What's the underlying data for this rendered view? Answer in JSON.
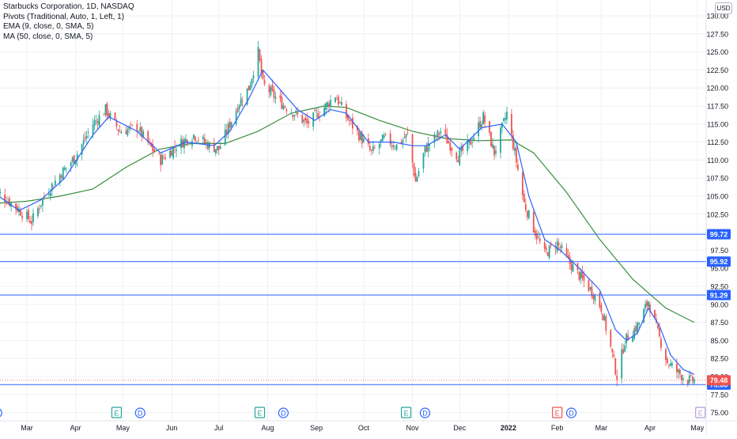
{
  "legend": {
    "title": "Starbucks Corporation, 1D, NASDAQ",
    "pivots": "Pivots (Traditional, Auto, 1, Left, 1)",
    "ema": "EMA (9, close, 0, SMA, 5)",
    "ma": "MA (50, close, 0, SMA, 5)"
  },
  "currency_badge": "USD",
  "colors": {
    "up": "#26a69a",
    "down": "#ef5350",
    "ema": "#2962ff",
    "ma": "#388e3c",
    "pivot_line": "#2962ff",
    "axis_text": "#131722",
    "last_price_bg": "#ef5350",
    "pivot_label_bg": "#2962ff",
    "gridline": "#eef0f3"
  },
  "events": [
    {
      "label": "D",
      "type": "dividend",
      "date": "2021-02-10",
      "color": "#2962ff"
    },
    {
      "label": "E",
      "type": "earnings",
      "date": "2021-04-27",
      "color": "#26a69a"
    },
    {
      "label": "D",
      "type": "dividend",
      "date": "2021-05-12",
      "color": "#2962ff"
    },
    {
      "label": "E",
      "type": "earnings",
      "date": "2021-07-27",
      "color": "#26a69a"
    },
    {
      "label": "D",
      "type": "dividend",
      "date": "2021-08-11",
      "color": "#2962ff"
    },
    {
      "label": "E",
      "type": "earnings",
      "date": "2021-10-28",
      "color": "#26a69a"
    },
    {
      "label": "D",
      "type": "dividend",
      "date": "2021-11-09",
      "color": "#2962ff"
    },
    {
      "label": "E",
      "type": "earnings",
      "date": "2022-02-01",
      "color": "#ef5350"
    },
    {
      "label": "D",
      "type": "dividend",
      "date": "2022-02-10",
      "color": "#2962ff"
    },
    {
      "label": "E",
      "type": "earnings",
      "date": "2022-05-03",
      "color": "#b39ddb"
    }
  ],
  "chart_data": {
    "type": "candlestick",
    "title": "Starbucks Corporation, 1D, NASDAQ",
    "x_range": [
      "2021-02-08",
      "2022-05-16"
    ],
    "ylim": [
      75,
      130
    ],
    "y_ticks": [
      75,
      77.5,
      80,
      82.5,
      85,
      87.5,
      90,
      92.5,
      95,
      97.5,
      100,
      102.5,
      105,
      107.5,
      110,
      112.5,
      115,
      117.5,
      120,
      122.5,
      125,
      127.5,
      130
    ],
    "y_tick_labels": [
      "75.00",
      "77.50",
      "80.00",
      "82.50",
      "85.00",
      "87.50",
      "90.00",
      "92.50",
      "95.00",
      "97.50",
      "100.00",
      "102.50",
      "105.00",
      "107.50",
      "110.00",
      "112.50",
      "115.00",
      "117.50",
      "120.00",
      "122.50",
      "125.00",
      "127.50",
      "130.00"
    ],
    "x_ticks": [
      {
        "label": "Mar",
        "date": "2021-03-01"
      },
      {
        "label": "Apr",
        "date": "2021-04-01"
      },
      {
        "label": "May",
        "date": "2021-05-01"
      },
      {
        "label": "Jun",
        "date": "2021-06-01"
      },
      {
        "label": "Jul",
        "date": "2021-07-01"
      },
      {
        "label": "Aug",
        "date": "2021-08-01"
      },
      {
        "label": "Sep",
        "date": "2021-09-01"
      },
      {
        "label": "Oct",
        "date": "2021-10-01"
      },
      {
        "label": "Nov",
        "date": "2021-11-01"
      },
      {
        "label": "Dec",
        "date": "2021-12-01"
      },
      {
        "label": "2022",
        "date": "2022-01-01"
      },
      {
        "label": "Feb",
        "date": "2022-02-01"
      },
      {
        "label": "Mar",
        "date": "2022-03-01"
      },
      {
        "label": "Apr",
        "date": "2022-04-01"
      },
      {
        "label": "May",
        "date": "2022-05-01"
      }
    ],
    "horizontal_lines": [
      {
        "value": 99.72,
        "label": "99.72"
      },
      {
        "value": 95.92,
        "label": "95.92"
      },
      {
        "value": 91.29,
        "label": "91.29"
      },
      {
        "value": 78.88,
        "label": "78.88"
      }
    ],
    "last_price": {
      "value": 79.48,
      "label": "79.48"
    },
    "price_path": [
      {
        "date": "2021-02-08",
        "close": 106.0
      },
      {
        "date": "2021-02-22",
        "close": 103.5
      },
      {
        "date": "2021-03-04",
        "close": 101.5
      },
      {
        "date": "2021-03-12",
        "close": 105.0
      },
      {
        "date": "2021-03-22",
        "close": 108.0
      },
      {
        "date": "2021-04-01",
        "close": 110.5
      },
      {
        "date": "2021-04-12",
        "close": 115.0
      },
      {
        "date": "2021-04-20",
        "close": 117.0
      },
      {
        "date": "2021-04-29",
        "close": 114.0
      },
      {
        "date": "2021-05-10",
        "close": 114.5
      },
      {
        "date": "2021-05-18",
        "close": 112.0
      },
      {
        "date": "2021-05-25",
        "close": 110.0
      },
      {
        "date": "2021-06-04",
        "close": 112.0
      },
      {
        "date": "2021-06-15",
        "close": 113.5
      },
      {
        "date": "2021-06-25",
        "close": 112.0
      },
      {
        "date": "2021-07-01",
        "close": 111.5
      },
      {
        "date": "2021-07-08",
        "close": 115.0
      },
      {
        "date": "2021-07-14",
        "close": 118.0
      },
      {
        "date": "2021-07-20",
        "close": 120.0
      },
      {
        "date": "2021-07-26",
        "close": 125.0
      },
      {
        "date": "2021-07-29",
        "close": 120.5
      },
      {
        "date": "2021-08-09",
        "close": 118.0
      },
      {
        "date": "2021-08-18",
        "close": 116.5
      },
      {
        "date": "2021-08-26",
        "close": 115.0
      },
      {
        "date": "2021-09-07",
        "close": 117.5
      },
      {
        "date": "2021-09-13",
        "close": 119.0
      },
      {
        "date": "2021-09-20",
        "close": 116.0
      },
      {
        "date": "2021-09-28",
        "close": 113.5
      },
      {
        "date": "2021-10-06",
        "close": 111.0
      },
      {
        "date": "2021-10-14",
        "close": 113.0
      },
      {
        "date": "2021-10-22",
        "close": 112.0
      },
      {
        "date": "2021-10-29",
        "close": 113.5
      },
      {
        "date": "2021-11-03",
        "close": 107.0
      },
      {
        "date": "2021-11-09",
        "close": 111.5
      },
      {
        "date": "2021-11-19",
        "close": 114.0
      },
      {
        "date": "2021-11-30",
        "close": 110.5
      },
      {
        "date": "2021-12-08",
        "close": 112.5
      },
      {
        "date": "2021-12-16",
        "close": 116.0
      },
      {
        "date": "2021-12-23",
        "close": 111.0
      },
      {
        "date": "2021-12-31",
        "close": 116.5
      },
      {
        "date": "2022-01-05",
        "close": 111.0
      },
      {
        "date": "2022-01-11",
        "close": 104.0
      },
      {
        "date": "2022-01-18",
        "close": 100.0
      },
      {
        "date": "2022-01-24",
        "close": 97.0
      },
      {
        "date": "2022-02-01",
        "close": 98.5
      },
      {
        "date": "2022-02-08",
        "close": 96.0
      },
      {
        "date": "2022-02-15",
        "close": 94.0
      },
      {
        "date": "2022-02-24",
        "close": 91.5
      },
      {
        "date": "2022-03-01",
        "close": 89.5
      },
      {
        "date": "2022-03-07",
        "close": 84.0
      },
      {
        "date": "2022-03-11",
        "close": 80.0
      },
      {
        "date": "2022-03-16",
        "close": 85.0
      },
      {
        "date": "2022-03-24",
        "close": 87.0
      },
      {
        "date": "2022-03-31",
        "close": 90.5
      },
      {
        "date": "2022-04-06",
        "close": 86.0
      },
      {
        "date": "2022-04-12",
        "close": 82.0
      },
      {
        "date": "2022-04-19",
        "close": 80.5
      },
      {
        "date": "2022-04-25",
        "close": 79.5
      },
      {
        "date": "2022-04-29",
        "close": 79.48
      }
    ],
    "ema_9": [
      {
        "date": "2021-02-08",
        "value": 105.5
      },
      {
        "date": "2021-02-24",
        "value": 103.0
      },
      {
        "date": "2021-03-10",
        "value": 104.5
      },
      {
        "date": "2021-03-25",
        "value": 107.5
      },
      {
        "date": "2021-04-12",
        "value": 113.5
      },
      {
        "date": "2021-04-22",
        "value": 116.0
      },
      {
        "date": "2021-05-10",
        "value": 114.0
      },
      {
        "date": "2021-05-25",
        "value": 111.0
      },
      {
        "date": "2021-06-10",
        "value": 112.5
      },
      {
        "date": "2021-06-28",
        "value": 112.0
      },
      {
        "date": "2021-07-08",
        "value": 114.0
      },
      {
        "date": "2021-07-20",
        "value": 118.5
      },
      {
        "date": "2021-07-29",
        "value": 122.5
      },
      {
        "date": "2021-08-10",
        "value": 119.5
      },
      {
        "date": "2021-08-20",
        "value": 117.0
      },
      {
        "date": "2021-08-31",
        "value": 115.5
      },
      {
        "date": "2021-09-10",
        "value": 117.0
      },
      {
        "date": "2021-09-20",
        "value": 116.5
      },
      {
        "date": "2021-10-04",
        "value": 112.5
      },
      {
        "date": "2021-10-20",
        "value": 112.5
      },
      {
        "date": "2021-11-01",
        "value": 112.0
      },
      {
        "date": "2021-11-10",
        "value": 112.0
      },
      {
        "date": "2021-11-22",
        "value": 113.5
      },
      {
        "date": "2021-12-01",
        "value": 111.5
      },
      {
        "date": "2021-12-15",
        "value": 114.5
      },
      {
        "date": "2021-12-28",
        "value": 115.0
      },
      {
        "date": "2022-01-06",
        "value": 112.5
      },
      {
        "date": "2022-01-14",
        "value": 105.0
      },
      {
        "date": "2022-01-24",
        "value": 99.0
      },
      {
        "date": "2022-02-03",
        "value": 97.5
      },
      {
        "date": "2022-02-15",
        "value": 95.0
      },
      {
        "date": "2022-02-28",
        "value": 92.0
      },
      {
        "date": "2022-03-10",
        "value": 86.5
      },
      {
        "date": "2022-03-17",
        "value": 85.0
      },
      {
        "date": "2022-03-24",
        "value": 86.0
      },
      {
        "date": "2022-03-31",
        "value": 89.5
      },
      {
        "date": "2022-04-07",
        "value": 87.0
      },
      {
        "date": "2022-04-14",
        "value": 83.0
      },
      {
        "date": "2022-04-22",
        "value": 81.0
      },
      {
        "date": "2022-04-29",
        "value": 80.3
      }
    ],
    "ma_50": [
      {
        "date": "2021-02-08",
        "value": 104.0
      },
      {
        "date": "2021-03-01",
        "value": 104.3
      },
      {
        "date": "2021-03-22",
        "value": 105.0
      },
      {
        "date": "2021-04-12",
        "value": 106.0
      },
      {
        "date": "2021-05-03",
        "value": 109.0
      },
      {
        "date": "2021-05-24",
        "value": 111.5
      },
      {
        "date": "2021-06-14",
        "value": 112.3
      },
      {
        "date": "2021-07-05",
        "value": 112.3
      },
      {
        "date": "2021-07-26",
        "value": 114.0
      },
      {
        "date": "2021-08-16",
        "value": 116.5
      },
      {
        "date": "2021-09-06",
        "value": 117.5
      },
      {
        "date": "2021-09-20",
        "value": 117.3
      },
      {
        "date": "2021-10-11",
        "value": 115.5
      },
      {
        "date": "2021-11-01",
        "value": 114.0
      },
      {
        "date": "2021-11-22",
        "value": 113.0
      },
      {
        "date": "2021-12-13",
        "value": 112.7
      },
      {
        "date": "2022-01-03",
        "value": 112.8
      },
      {
        "date": "2022-01-17",
        "value": 111.0
      },
      {
        "date": "2022-02-07",
        "value": 105.5
      },
      {
        "date": "2022-02-28",
        "value": 99.0
      },
      {
        "date": "2022-03-21",
        "value": 93.5
      },
      {
        "date": "2022-04-11",
        "value": 89.5
      },
      {
        "date": "2022-04-29",
        "value": 87.5
      }
    ]
  }
}
